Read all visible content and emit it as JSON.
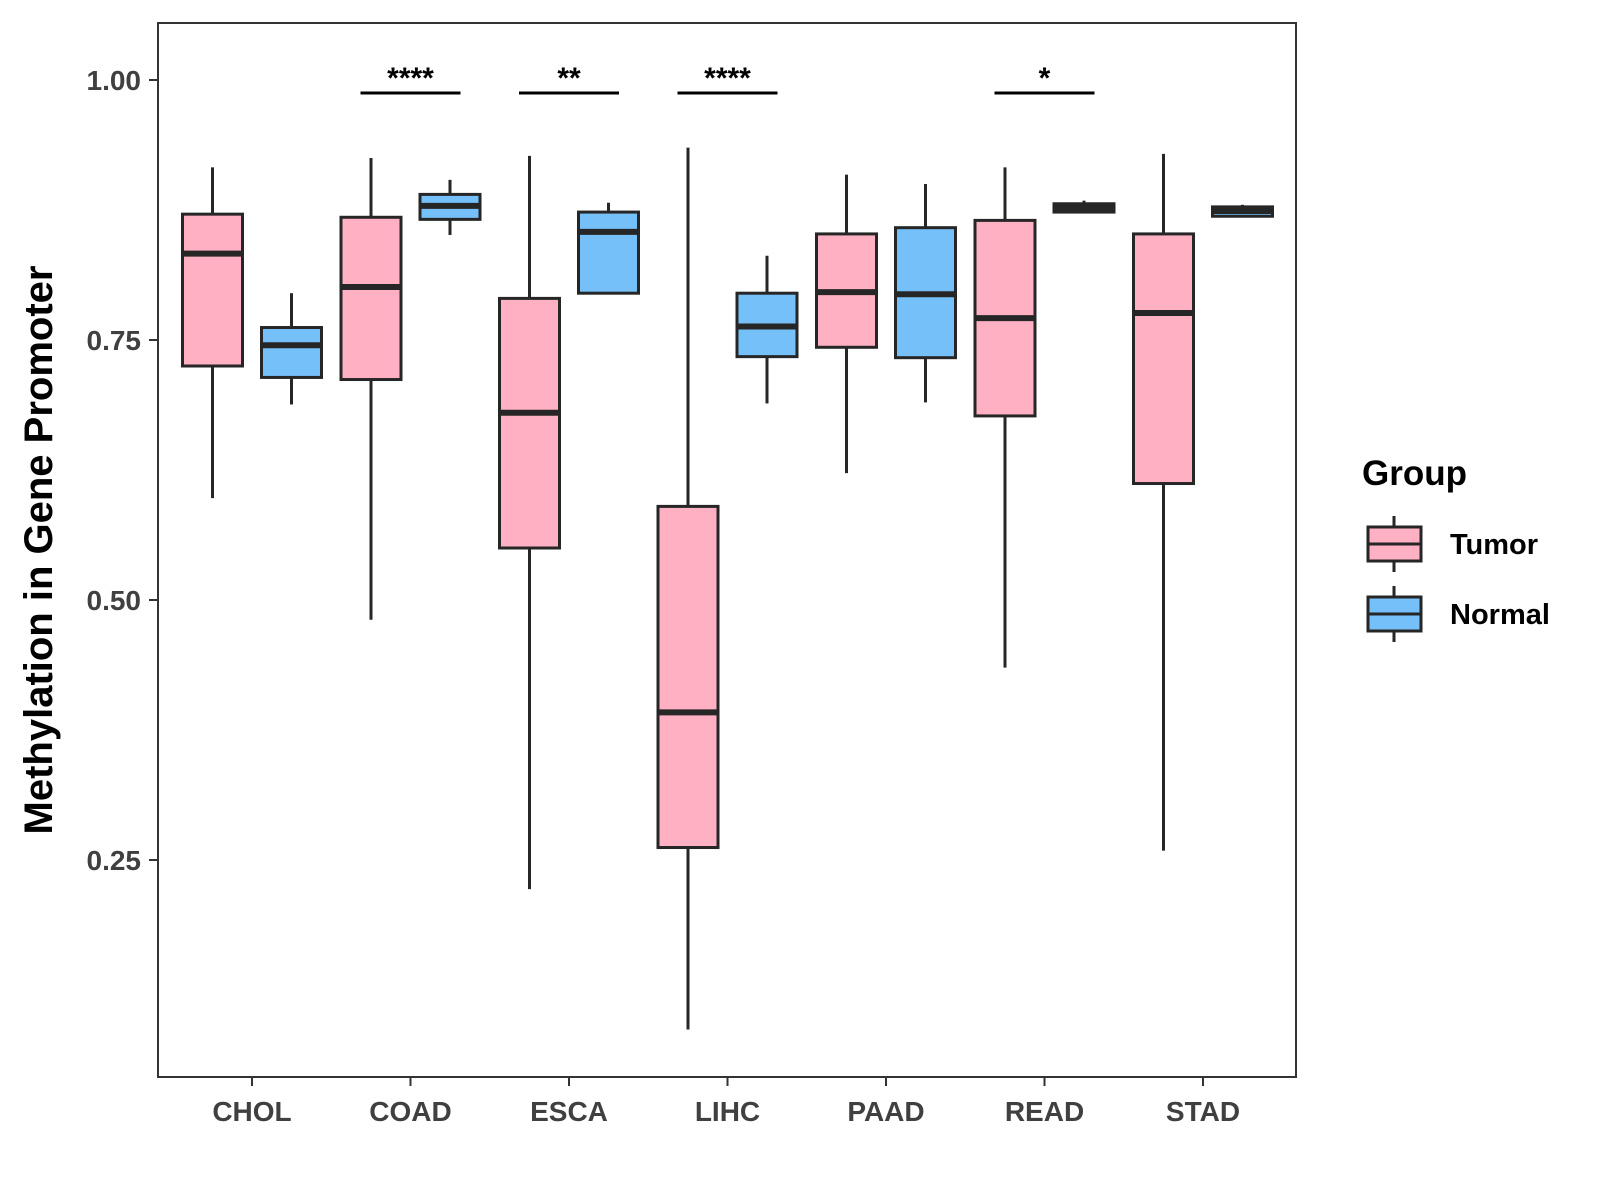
{
  "chart_data": {
    "type": "boxplot",
    "title": "",
    "xlabel": "",
    "ylabel": "Methylation in Gene Promoter",
    "ylim": [
      0.04,
      1.055
    ],
    "yticks": [
      0.25,
      0.5,
      0.75,
      1.0
    ],
    "ytick_labels": [
      "0.25",
      "0.50",
      "0.75",
      "1.00"
    ],
    "categories": [
      "CHOL",
      "COAD",
      "ESCA",
      "LIHC",
      "PAAD",
      "READ",
      "STAD"
    ],
    "grid": false,
    "legend": {
      "title": "Group",
      "position": "right",
      "entries": [
        {
          "name": "Tumor",
          "color": "#FFB0C2"
        },
        {
          "name": "Normal",
          "color": "#75C0F8"
        }
      ]
    },
    "series": [
      {
        "name": "Tumor",
        "color": "#FFB0C2",
        "boxes": [
          {
            "min": 0.598,
            "q1": 0.725,
            "median": 0.833,
            "q3": 0.871,
            "max": 0.916
          },
          {
            "min": 0.481,
            "q1": 0.712,
            "median": 0.801,
            "q3": 0.868,
            "max": 0.925
          },
          {
            "min": 0.222,
            "q1": 0.55,
            "median": 0.68,
            "q3": 0.79,
            "max": 0.927
          },
          {
            "min": 0.087,
            "q1": 0.262,
            "median": 0.392,
            "q3": 0.59,
            "max": 0.935
          },
          {
            "min": 0.622,
            "q1": 0.743,
            "median": 0.796,
            "q3": 0.852,
            "max": 0.909
          },
          {
            "min": 0.435,
            "q1": 0.677,
            "median": 0.771,
            "q3": 0.865,
            "max": 0.916
          },
          {
            "min": 0.259,
            "q1": 0.612,
            "median": 0.776,
            "q3": 0.852,
            "max": 0.929
          }
        ]
      },
      {
        "name": "Normal",
        "color": "#75C0F8",
        "boxes": [
          {
            "min": 0.688,
            "q1": 0.714,
            "median": 0.745,
            "q3": 0.762,
            "max": 0.795
          },
          {
            "min": 0.851,
            "q1": 0.866,
            "median": 0.879,
            "q3": 0.89,
            "max": 0.904
          },
          {
            "min": 0.795,
            "q1": 0.795,
            "median": 0.854,
            "q3": 0.873,
            "max": 0.882
          },
          {
            "min": 0.689,
            "q1": 0.734,
            "median": 0.763,
            "q3": 0.795,
            "max": 0.831
          },
          {
            "min": 0.69,
            "q1": 0.733,
            "median": 0.794,
            "q3": 0.858,
            "max": 0.9
          },
          {
            "min": 0.873,
            "q1": 0.873,
            "median": 0.877,
            "q3": 0.881,
            "max": 0.884
          },
          {
            "min": 0.869,
            "q1": 0.869,
            "median": 0.874,
            "q3": 0.878,
            "max": 0.88
          }
        ]
      }
    ],
    "annotations": [
      {
        "category": "COAD",
        "label": "****"
      },
      {
        "category": "ESCA",
        "label": "**"
      },
      {
        "category": "LIHC",
        "label": "****"
      },
      {
        "category": "READ",
        "label": "*"
      }
    ]
  }
}
